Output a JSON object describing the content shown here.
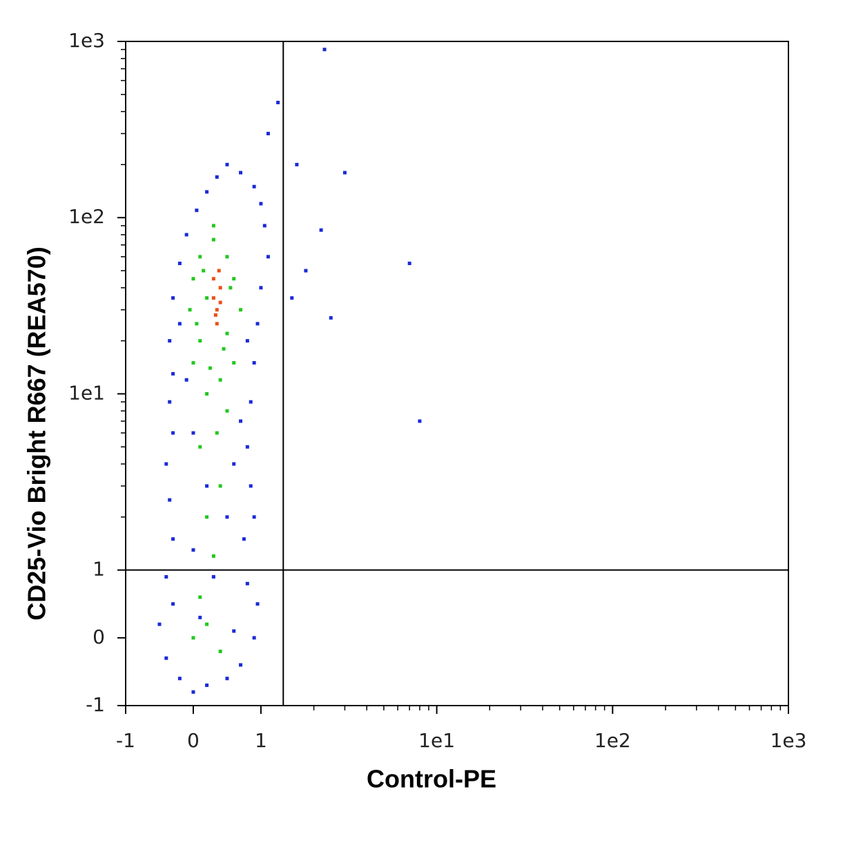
{
  "chart_data": {
    "type": "scatter",
    "x_label": "Control-PE",
    "y_label": "CD25-Vio Bright R667 (REA570)",
    "scale": "biexponential",
    "xlim": [
      -1,
      1000
    ],
    "ylim": [
      -1,
      1000
    ],
    "xticks": [
      -1,
      0,
      1,
      {
        "value": 10,
        "label": "1e1"
      },
      {
        "value": 100,
        "label": "1e2"
      },
      {
        "value": 1000,
        "label": "1e3"
      }
    ],
    "yticks": [
      -1,
      0,
      1,
      {
        "value": 10,
        "label": "1e1"
      },
      {
        "value": 100,
        "label": "1e2"
      },
      {
        "value": 1000,
        "label": "1e3"
      }
    ],
    "xminorticks": [
      2,
      3,
      4,
      5,
      6,
      7,
      8,
      9,
      20,
      30,
      40,
      50,
      60,
      70,
      80,
      90,
      200,
      300,
      400,
      500,
      600,
      700,
      800,
      900
    ],
    "yminorticks": [
      2,
      3,
      4,
      5,
      6,
      7,
      8,
      9,
      20,
      30,
      40,
      50,
      60,
      70,
      80,
      90,
      200,
      300,
      400,
      500,
      600,
      700,
      800,
      900
    ],
    "quadrant": {
      "x": 1.34,
      "y": 1
    },
    "series": [
      {
        "color": "#1a2bd8",
        "x": [
          -0.5,
          -0.4,
          -0.3,
          -0.2,
          0.0,
          0.2,
          0.5,
          0.7,
          0.9,
          0.95,
          0.8,
          -0.4,
          -0.3,
          -0.35,
          -0.4,
          -0.3,
          -0.35,
          -0.3,
          -0.35,
          -0.3,
          -0.2,
          -0.1,
          0.05,
          0.2,
          0.35,
          0.5,
          0.7,
          0.9,
          1.0,
          1.05,
          1.1,
          1.0,
          0.95,
          0.9,
          0.85,
          0.8,
          0.85,
          0.9,
          0.75,
          0.1,
          0.6,
          0.3,
          0.0,
          0.5,
          0.2,
          0.6,
          0.0,
          0.7,
          -0.1,
          0.8,
          -0.2,
          1.1,
          1.25,
          1.6,
          3,
          2.2,
          1.8,
          7,
          2.5,
          8,
          1.5,
          2.3
        ],
        "y": [
          0.2,
          -0.3,
          0.5,
          -0.6,
          -0.8,
          -0.7,
          -0.6,
          -0.4,
          0,
          0.5,
          0.8,
          0.9,
          1.5,
          2.5,
          4,
          6,
          9,
          13,
          20,
          35,
          55,
          80,
          110,
          140,
          170,
          200,
          180,
          150,
          120,
          90,
          60,
          40,
          25,
          15,
          9,
          5,
          3,
          2,
          1.5,
          0.3,
          0.1,
          0.9,
          1.3,
          2,
          3,
          4,
          6,
          7,
          12,
          20,
          25,
          300,
          450,
          200,
          180,
          85,
          50,
          55,
          27,
          7,
          35,
          900
        ]
      },
      {
        "color": "#22c81e",
        "x": [
          0.0,
          0.2,
          0.4,
          0.1,
          0.3,
          0.2,
          0.4,
          0.1,
          0.35,
          0.5,
          0.2,
          0.4,
          0.0,
          0.6,
          0.1,
          0.5,
          -0.05,
          0.7,
          0.0,
          0.6,
          0.1,
          0.5,
          0.3,
          0.2,
          0.45,
          0.25,
          0.55,
          0.05,
          0.3,
          0.15
        ],
        "y": [
          0.0,
          0.2,
          -0.2,
          0.6,
          1.2,
          2,
          3,
          5,
          6,
          8,
          10,
          12,
          15,
          15,
          20,
          22,
          30,
          30,
          45,
          45,
          60,
          60,
          75,
          35,
          18,
          14,
          40,
          25,
          90,
          50
        ]
      },
      {
        "color": "#e8501a",
        "x": [
          0.35,
          0.3,
          0.4,
          0.35,
          0.3,
          0.4,
          0.33,
          0.38
        ],
        "y": [
          30,
          35,
          40,
          25,
          45,
          33,
          28,
          50
        ]
      }
    ]
  }
}
